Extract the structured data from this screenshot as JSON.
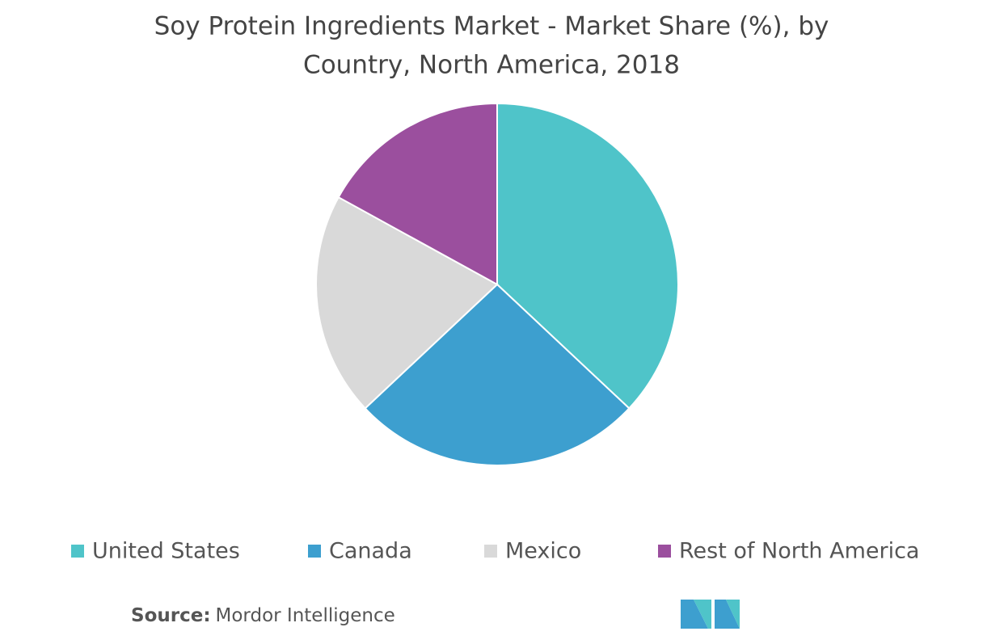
{
  "chart_data": {
    "type": "pie",
    "title": [
      "Soy Protein Ingredients Market - Market Share (%), by",
      "Country, North America,  2018"
    ],
    "categories": [
      "United States",
      "Canada",
      "Mexico",
      "Rest of North America"
    ],
    "values": [
      37,
      26,
      20,
      17
    ],
    "colors": [
      "#4fc4c9",
      "#3d9fcf",
      "#d9d9d9",
      "#9b4f9e"
    ],
    "source_label": "Source:",
    "source": "Mordor Intelligence"
  }
}
